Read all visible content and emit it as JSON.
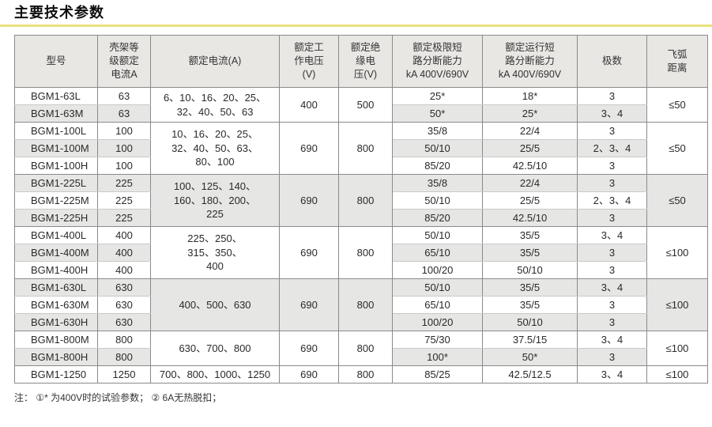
{
  "page": {
    "title": "主要技术参数",
    "accent_color": "#e9e17d",
    "header_bg": "#e8e7e4",
    "stripe_bg": "#e6e6e5",
    "note": "注： ①* 为400V时的试验参数；  ② 6A无热脱扣；"
  },
  "table": {
    "headers": {
      "model": "型号",
      "frame": "壳架等\n级额定\n电流A",
      "current": "额定电流(A)",
      "uw": "额定工\n作电压\n(V)",
      "ui": "额定绝\n缘电\n压(V)",
      "icu": "额定极限短\n路分断能力\nkA 400V/690V",
      "ics": "额定运行短\n路分断能力\nkA 400V/690V",
      "poles": "极数",
      "arc": "飞弧\n距离"
    },
    "groups": [
      {
        "rated_current": "6、10、16、20、25、\n32、40、50、63",
        "working_voltage": "400",
        "insulation_voltage": "500",
        "arc_distance": "≤50",
        "rows": [
          {
            "model": "BGM1-63L",
            "frame": "63",
            "icu": "25*",
            "ics": "18*",
            "poles": "3"
          },
          {
            "model": "BGM1-63M",
            "frame": "63",
            "icu": "50*",
            "ics": "25*",
            "poles": "3、4"
          }
        ]
      },
      {
        "rated_current": "10、16、20、25、\n32、40、50、63、\n80、100",
        "working_voltage": "690",
        "insulation_voltage": "800",
        "arc_distance": "≤50",
        "rows": [
          {
            "model": "BGM1-100L",
            "frame": "100",
            "icu": "35/8",
            "ics": "22/4",
            "poles": "3"
          },
          {
            "model": "BGM1-100M",
            "frame": "100",
            "icu": "50/10",
            "ics": "25/5",
            "poles": "2、3、4"
          },
          {
            "model": "BGM1-100H",
            "frame": "100",
            "icu": "85/20",
            "ics": "42.5/10",
            "poles": "3"
          }
        ]
      },
      {
        "rated_current": "100、125、140、\n160、180、200、\n225",
        "working_voltage": "690",
        "insulation_voltage": "800",
        "arc_distance": "≤50",
        "rows": [
          {
            "model": "BGM1-225L",
            "frame": "225",
            "icu": "35/8",
            "ics": "22/4",
            "poles": "3"
          },
          {
            "model": "BGM1-225M",
            "frame": "225",
            "icu": "50/10",
            "ics": "25/5",
            "poles": "2、3、4"
          },
          {
            "model": "BGM1-225H",
            "frame": "225",
            "icu": "85/20",
            "ics": "42.5/10",
            "poles": "3"
          }
        ]
      },
      {
        "rated_current": "225、250、\n315、350、\n400",
        "working_voltage": "690",
        "insulation_voltage": "800",
        "arc_distance": "≤100",
        "rows": [
          {
            "model": "BGM1-400L",
            "frame": "400",
            "icu": "50/10",
            "ics": "35/5",
            "poles": "3、4"
          },
          {
            "model": "BGM1-400M",
            "frame": "400",
            "icu": "65/10",
            "ics": "35/5",
            "poles": "3"
          },
          {
            "model": "BGM1-400H",
            "frame": "400",
            "icu": "100/20",
            "ics": "50/10",
            "poles": "3"
          }
        ]
      },
      {
        "rated_current": "400、500、630",
        "working_voltage": "690",
        "insulation_voltage": "800",
        "arc_distance": "≤100",
        "rows": [
          {
            "model": "BGM1-630L",
            "frame": "630",
            "icu": "50/10",
            "ics": "35/5",
            "poles": "3、4"
          },
          {
            "model": "BGM1-630M",
            "frame": "630",
            "icu": "65/10",
            "ics": "35/5",
            "poles": "3"
          },
          {
            "model": "BGM1-630H",
            "frame": "630",
            "icu": "100/20",
            "ics": "50/10",
            "poles": "3"
          }
        ]
      },
      {
        "rated_current": "630、700、800",
        "working_voltage": "690",
        "insulation_voltage": "800",
        "arc_distance": "≤100",
        "rows": [
          {
            "model": "BGM1-800M",
            "frame": "800",
            "icu": "75/30",
            "ics": "37.5/15",
            "poles": "3、4"
          },
          {
            "model": "BGM1-800H",
            "frame": "800",
            "icu": "100*",
            "ics": "50*",
            "poles": "3"
          }
        ]
      },
      {
        "rated_current": "700、800、1000、1250",
        "working_voltage": "690",
        "insulation_voltage": "800",
        "arc_distance": "≤100",
        "rows": [
          {
            "model": "BGM1-1250",
            "frame": "1250",
            "icu": "85/25",
            "ics": "42.5/12.5",
            "poles": "3、4"
          }
        ]
      }
    ]
  }
}
